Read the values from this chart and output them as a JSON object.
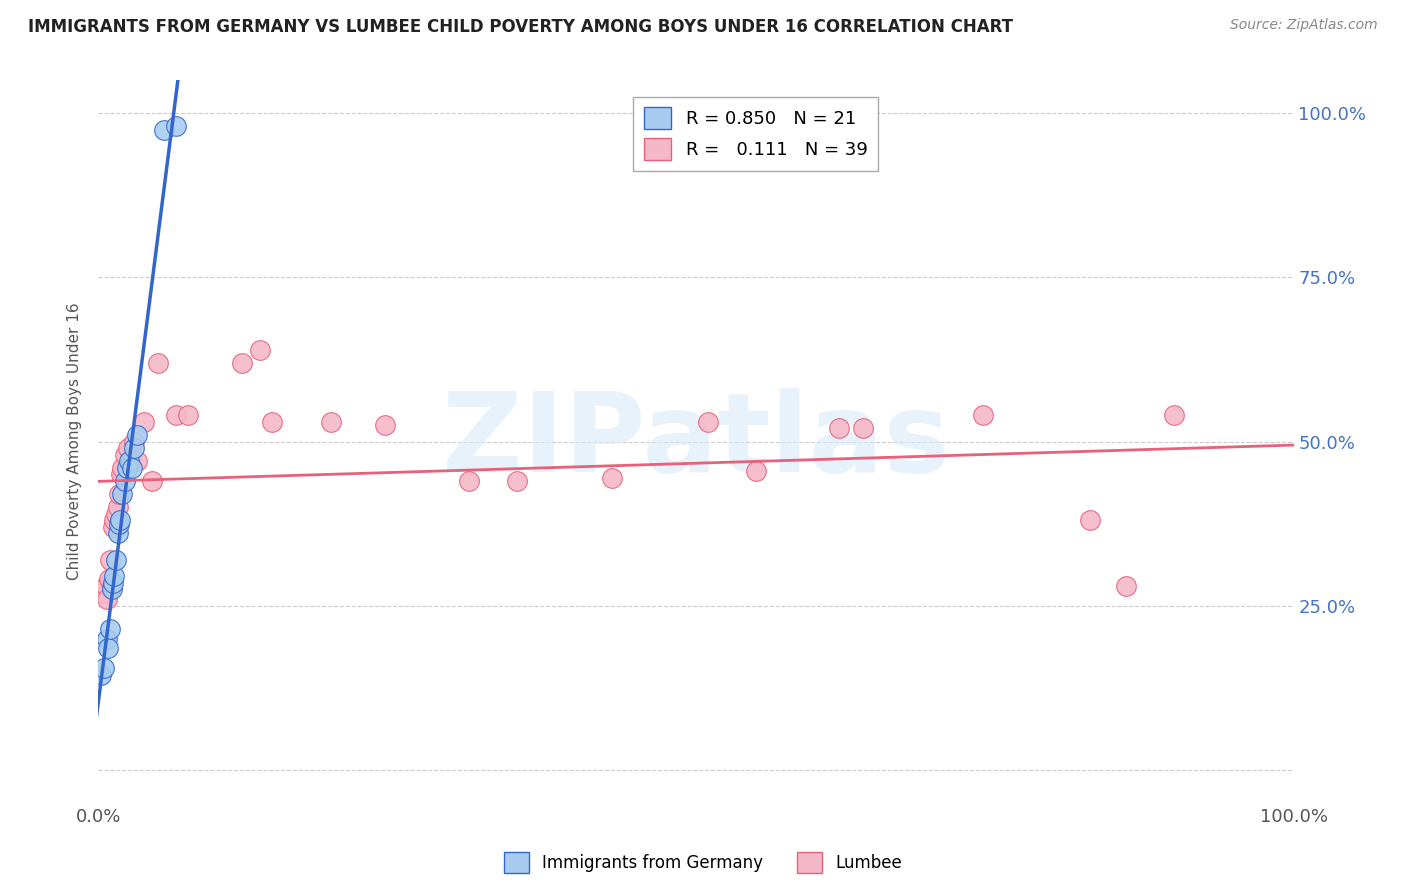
{
  "title": "IMMIGRANTS FROM GERMANY VS LUMBEE CHILD POVERTY AMONG BOYS UNDER 16 CORRELATION CHART",
  "source": "Source: ZipAtlas.com",
  "ylabel": "Child Poverty Among Boys Under 16",
  "germany_color": "#A8CCF0",
  "lumbee_color": "#F5B8C8",
  "germany_line_color": "#3366CC",
  "lumbee_line_color": "#E8607A",
  "legend_R_germany": "0.850",
  "legend_N_germany": "21",
  "legend_R_lumbee": "0.111",
  "legend_N_lumbee": "39",
  "germany_x": [
    0.002,
    0.005,
    0.007,
    0.008,
    0.01,
    0.011,
    0.012,
    0.013,
    0.015,
    0.016,
    0.017,
    0.018,
    0.02,
    0.022,
    0.024,
    0.026,
    0.028,
    0.03,
    0.032,
    0.055,
    0.065
  ],
  "germany_y": [
    0.145,
    0.155,
    0.2,
    0.185,
    0.215,
    0.275,
    0.285,
    0.295,
    0.32,
    0.36,
    0.375,
    0.38,
    0.42,
    0.44,
    0.46,
    0.47,
    0.46,
    0.49,
    0.51,
    0.975,
    0.98
  ],
  "lumbee_x": [
    0.004,
    0.006,
    0.007,
    0.009,
    0.01,
    0.011,
    0.012,
    0.013,
    0.015,
    0.016,
    0.017,
    0.019,
    0.02,
    0.022,
    0.025,
    0.027,
    0.03,
    0.032,
    0.038,
    0.045,
    0.05,
    0.065,
    0.075,
    0.12,
    0.135,
    0.145,
    0.195,
    0.24,
    0.31,
    0.35,
    0.43,
    0.51,
    0.55,
    0.62,
    0.64,
    0.74,
    0.83,
    0.86,
    0.9
  ],
  "lumbee_y": [
    0.27,
    0.28,
    0.26,
    0.29,
    0.32,
    0.28,
    0.37,
    0.38,
    0.39,
    0.4,
    0.42,
    0.45,
    0.46,
    0.48,
    0.49,
    0.47,
    0.5,
    0.47,
    0.53,
    0.44,
    0.62,
    0.54,
    0.54,
    0.62,
    0.64,
    0.53,
    0.53,
    0.525,
    0.44,
    0.44,
    0.445,
    0.53,
    0.455,
    0.52,
    0.52,
    0.54,
    0.38,
    0.28,
    0.54
  ],
  "xlim": [
    0,
    1.0
  ],
  "ylim": [
    -0.05,
    1.05
  ],
  "xtick_positions": [
    0,
    0.25,
    0.5,
    0.75,
    1.0
  ],
  "ytick_positions": [
    0,
    0.25,
    0.5,
    0.75,
    1.0
  ],
  "right_ytick_labels": [
    "",
    "25.0%",
    "50.0%",
    "75.0%",
    "100.0%"
  ],
  "bottom_xtick_labels": [
    "0.0%",
    "",
    "",
    "",
    "100.0%"
  ]
}
